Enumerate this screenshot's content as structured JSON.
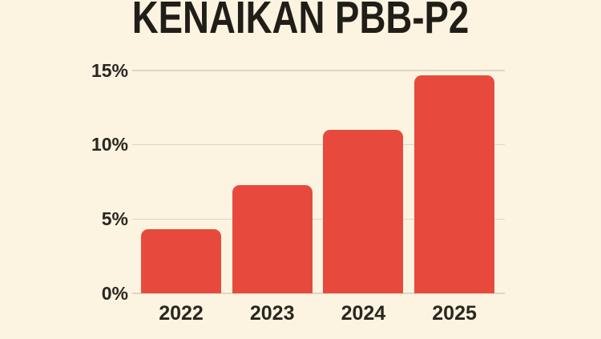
{
  "title": "KENAIKAN PBB-P2",
  "colors": {
    "background": "#FCF4E0",
    "bar": "#E74A3D",
    "grid": "#DDD6C3",
    "text_dark": "#211D18",
    "text_label": "#2A2621"
  },
  "chart_data": {
    "type": "bar",
    "title": "KENAIKAN PBB-P2",
    "categories": [
      "2022",
      "2023",
      "2024",
      "2025"
    ],
    "values": [
      4.3,
      7.3,
      11.0,
      14.7
    ],
    "unit": "%",
    "xlabel": "",
    "ylabel": "",
    "y_ticks": [
      "0%",
      "5%",
      "10%",
      "15%"
    ],
    "y_tick_values": [
      0,
      5,
      10,
      15
    ],
    "ylim": [
      0,
      15
    ],
    "grid": true,
    "legend": false,
    "bar_color": "#E74A3D"
  }
}
